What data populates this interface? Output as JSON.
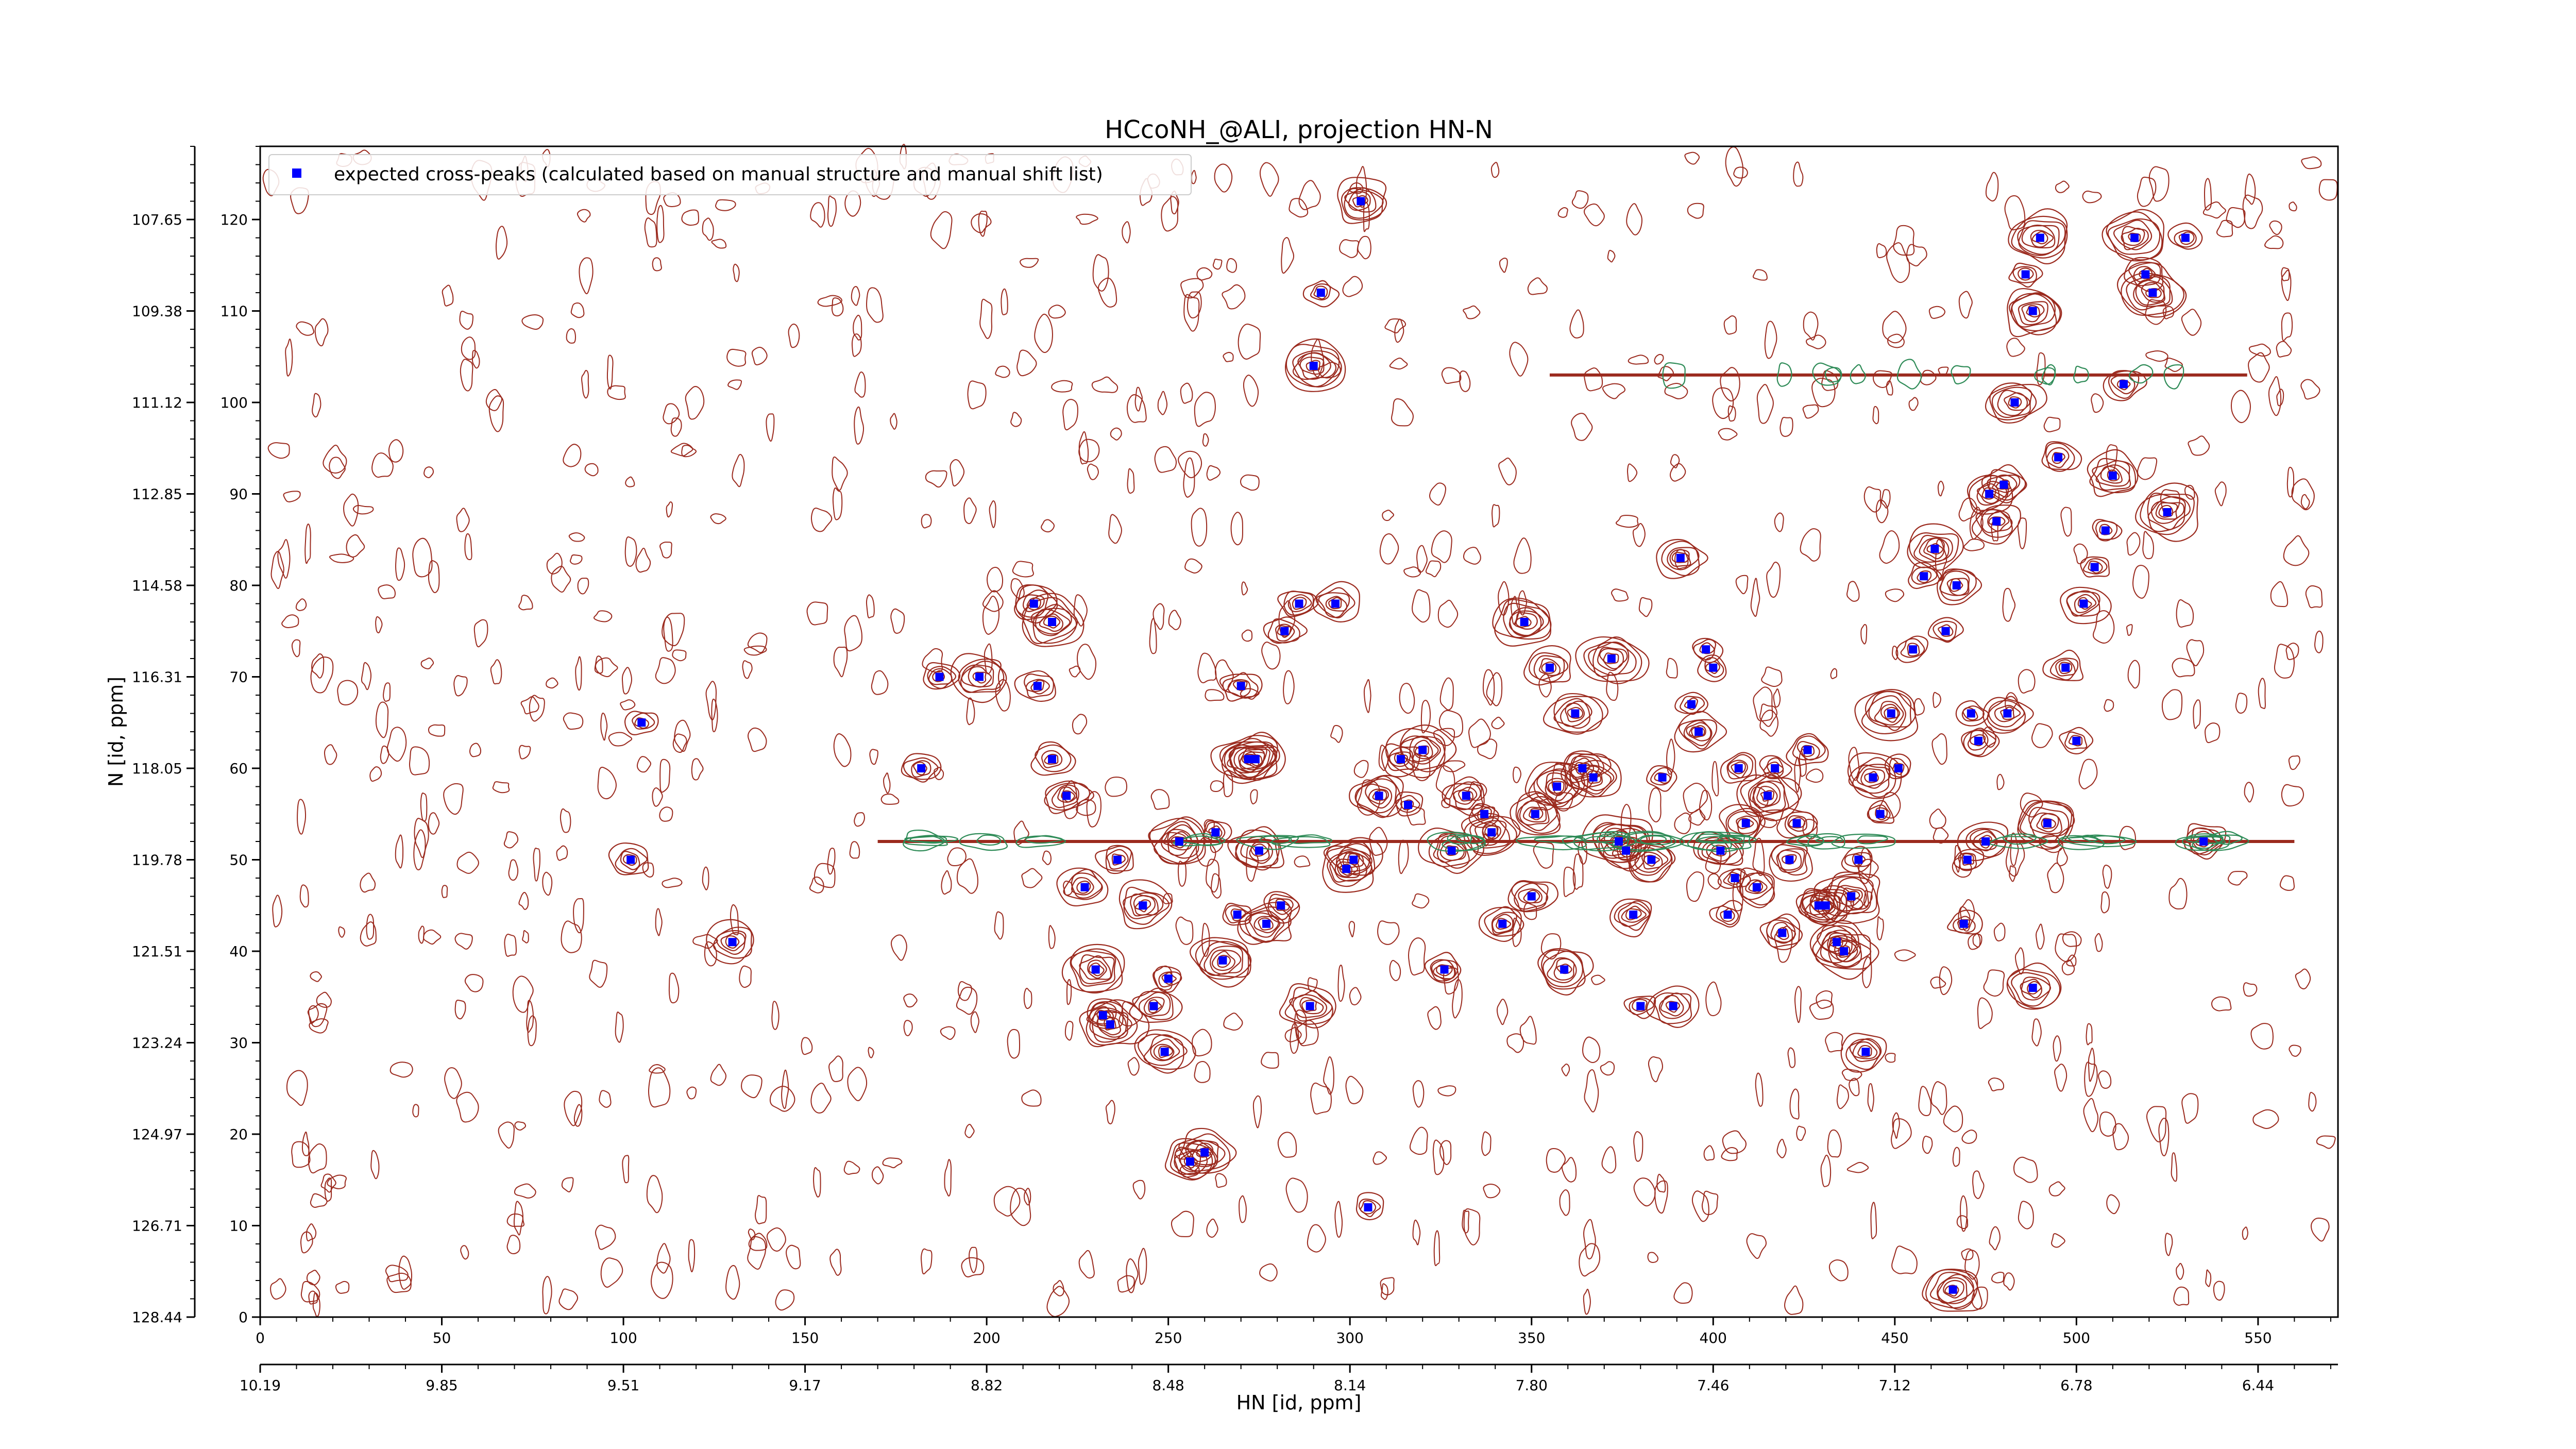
{
  "chart_data": {
    "type": "scatter",
    "title": "HCcoNH_@ALI, projection HN-N",
    "xlabel": "HN [id, ppm]",
    "ylabel": "N [id, ppm]",
    "xlim": [
      0,
      572
    ],
    "ylim": [
      0,
      128
    ],
    "x_ticks": [
      0,
      50,
      100,
      150,
      200,
      250,
      300,
      350,
      400,
      450,
      500,
      550
    ],
    "y_ticks": [
      0,
      10,
      20,
      30,
      40,
      50,
      60,
      70,
      80,
      90,
      100,
      110,
      120
    ],
    "x_ppm_ticks": [
      "10.19",
      "9.85",
      "9.51",
      "9.17",
      "8.82",
      "8.48",
      "8.14",
      "7.80",
      "7.46",
      "7.12",
      "6.78",
      "6.44"
    ],
    "y_ppm_ticks": [
      "128.44",
      "126.71",
      "124.97",
      "123.24",
      "121.51",
      "119.78",
      "118.05",
      "116.31",
      "114.58",
      "112.85",
      "111.12",
      "109.38",
      "107.65"
    ],
    "legend_position": "top-left",
    "series": [
      {
        "name": "expected cross-peaks (calculated based on manual structure and manual shift list)",
        "color": "#0000ff",
        "points": [
          [
            105,
            65
          ],
          [
            102,
            50
          ],
          [
            130,
            41
          ],
          [
            182,
            60
          ],
          [
            187,
            70
          ],
          [
            198,
            70
          ],
          [
            213,
            78
          ],
          [
            214,
            69
          ],
          [
            218,
            76
          ],
          [
            218,
            61
          ],
          [
            222,
            57
          ],
          [
            227,
            47
          ],
          [
            230,
            38
          ],
          [
            232,
            33
          ],
          [
            234,
            32
          ],
          [
            236,
            50
          ],
          [
            243,
            45
          ],
          [
            246,
            34
          ],
          [
            249,
            29
          ],
          [
            250,
            37
          ],
          [
            253,
            52
          ],
          [
            256,
            17
          ],
          [
            260,
            18
          ],
          [
            263,
            53
          ],
          [
            265,
            39
          ],
          [
            269,
            44
          ],
          [
            270,
            69
          ],
          [
            272,
            61
          ],
          [
            274,
            61
          ],
          [
            275,
            51
          ],
          [
            277,
            43
          ],
          [
            281,
            45
          ],
          [
            282,
            75
          ],
          [
            286,
            78
          ],
          [
            289,
            34
          ],
          [
            290,
            104
          ],
          [
            292,
            112
          ],
          [
            296,
            78
          ],
          [
            299,
            49
          ],
          [
            301,
            50
          ],
          [
            303,
            122
          ],
          [
            305,
            12
          ],
          [
            308,
            57
          ],
          [
            314,
            61
          ],
          [
            316,
            56
          ],
          [
            320,
            62
          ],
          [
            326,
            38
          ],
          [
            328,
            51
          ],
          [
            332,
            57
          ],
          [
            337,
            55
          ],
          [
            339,
            53
          ],
          [
            342,
            43
          ],
          [
            348,
            76
          ],
          [
            350,
            46
          ],
          [
            351,
            55
          ],
          [
            355,
            71
          ],
          [
            357,
            58
          ],
          [
            359,
            38
          ],
          [
            362,
            66
          ],
          [
            364,
            60
          ],
          [
            367,
            59
          ],
          [
            372,
            72
          ],
          [
            374,
            52
          ],
          [
            376,
            51
          ],
          [
            378,
            44
          ],
          [
            380,
            34
          ],
          [
            383,
            50
          ],
          [
            386,
            59
          ],
          [
            389,
            34
          ],
          [
            391,
            83
          ],
          [
            394,
            67
          ],
          [
            396,
            64
          ],
          [
            398,
            73
          ],
          [
            400,
            71
          ],
          [
            402,
            51
          ],
          [
            404,
            44
          ],
          [
            406,
            48
          ],
          [
            407,
            60
          ],
          [
            409,
            54
          ],
          [
            412,
            47
          ],
          [
            415,
            57
          ],
          [
            417,
            60
          ],
          [
            419,
            42
          ],
          [
            421,
            50
          ],
          [
            423,
            54
          ],
          [
            426,
            62
          ],
          [
            429,
            45
          ],
          [
            431,
            45
          ],
          [
            434,
            41
          ],
          [
            436,
            40
          ],
          [
            438,
            46
          ],
          [
            440,
            50
          ],
          [
            442,
            29
          ],
          [
            444,
            59
          ],
          [
            446,
            55
          ],
          [
            449,
            66
          ],
          [
            451,
            60
          ],
          [
            455,
            73
          ],
          [
            458,
            81
          ],
          [
            461,
            84
          ],
          [
            464,
            75
          ],
          [
            467,
            80
          ],
          [
            469,
            43
          ],
          [
            471,
            66
          ],
          [
            473,
            63
          ],
          [
            476,
            90
          ],
          [
            478,
            87
          ],
          [
            480,
            91
          ],
          [
            483,
            100
          ],
          [
            486,
            114
          ],
          [
            488,
            110
          ],
          [
            490,
            118
          ],
          [
            495,
            94
          ],
          [
            497,
            71
          ],
          [
            500,
            63
          ],
          [
            502,
            78
          ],
          [
            505,
            82
          ],
          [
            508,
            86
          ],
          [
            510,
            92
          ],
          [
            513,
            102
          ],
          [
            516,
            118
          ],
          [
            519,
            114
          ],
          [
            521,
            112
          ],
          [
            525,
            88
          ],
          [
            530,
            118
          ],
          [
            535,
            52
          ],
          [
            492,
            54
          ],
          [
            481,
            66
          ],
          [
            475,
            52
          ],
          [
            466,
            3
          ],
          [
            470,
            50
          ],
          [
            488,
            36
          ]
        ]
      }
    ]
  },
  "colors": {
    "positive_contour": "#9b2a1e",
    "negative_contour": "#2e8b57",
    "peak_marker": "#0000ff",
    "axes": "#000000"
  }
}
